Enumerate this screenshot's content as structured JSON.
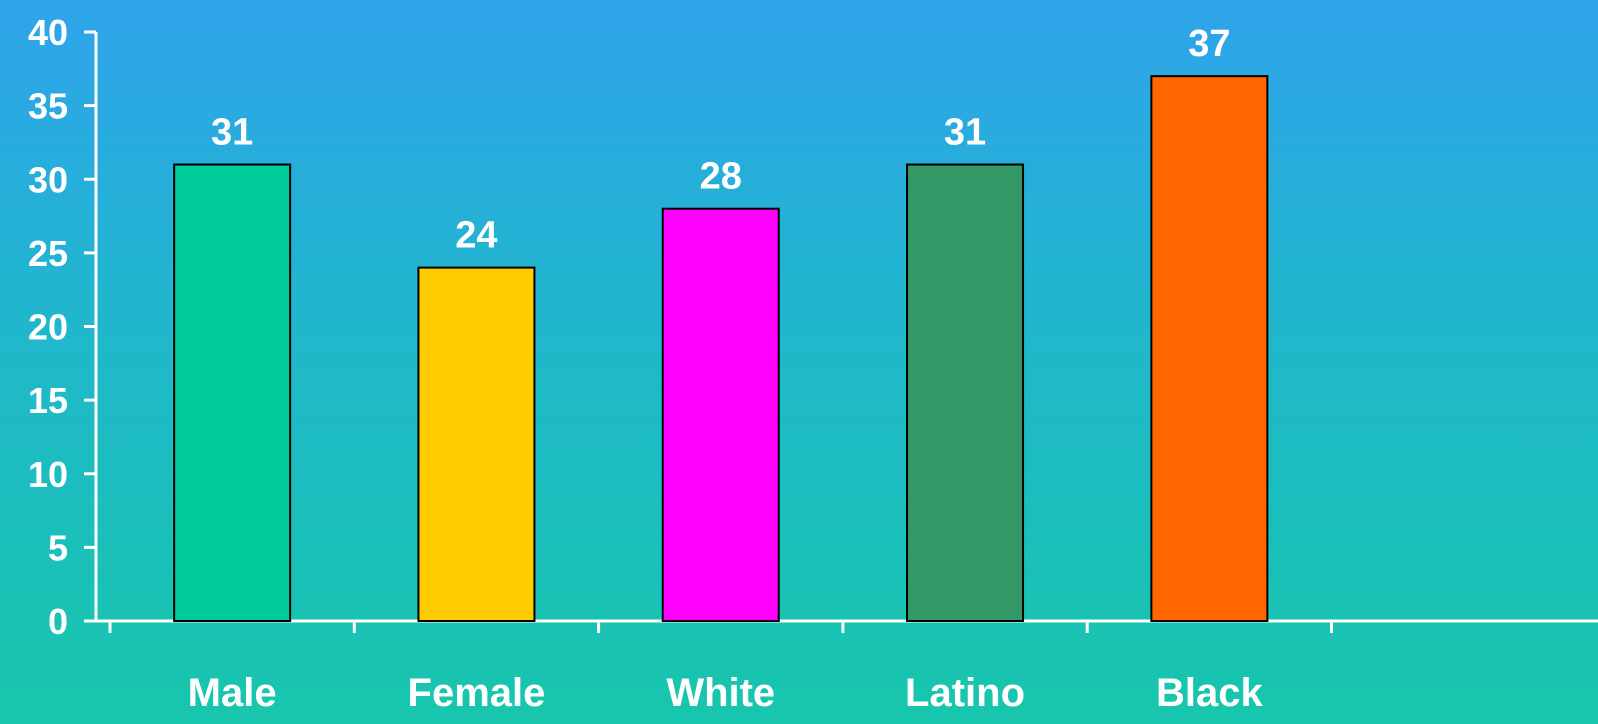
{
  "chart_data": {
    "type": "bar",
    "categories": [
      "Male",
      "Female",
      "White",
      "Latino",
      "Black"
    ],
    "values": [
      31,
      24,
      28,
      31,
      37
    ],
    "data_labels": [
      "31",
      "24",
      "28",
      "31",
      "37"
    ],
    "bar_colors": [
      "#00cc99",
      "#ffcc00",
      "#ff00ff",
      "#339966",
      "#ff6600"
    ],
    "title": "",
    "xlabel": "",
    "ylabel": "",
    "ylim": [
      0,
      40
    ],
    "yticks": [
      0,
      5,
      10,
      15,
      20,
      25,
      30,
      35,
      40
    ],
    "grid": false,
    "legend": "none"
  }
}
